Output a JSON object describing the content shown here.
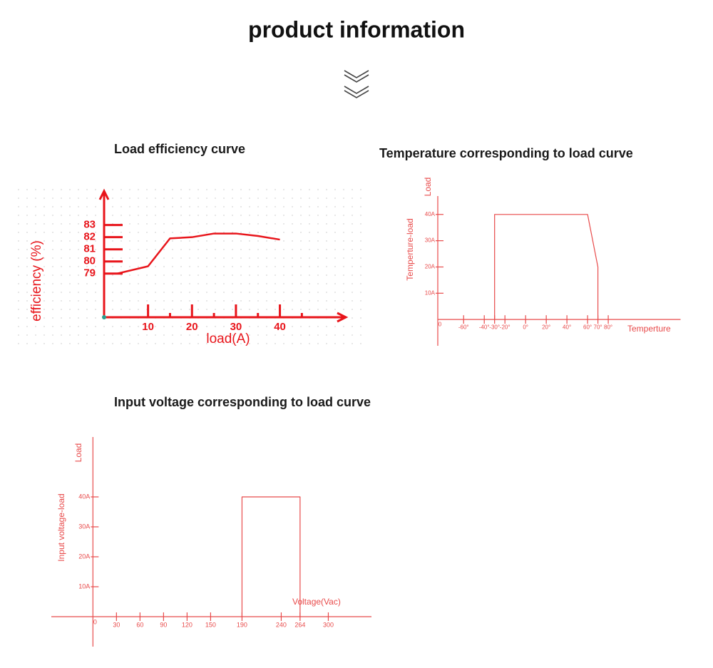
{
  "header": {
    "title": "product information"
  },
  "chart_data": [
    {
      "type": "line",
      "title": "Load efficiency curve",
      "x_label": "load(A)",
      "y_label": "efficiency (%)",
      "color": "#e8151b",
      "x": [
        3,
        10,
        15,
        20,
        25,
        30,
        35,
        40
      ],
      "values": [
        79,
        79.6,
        81.9,
        82,
        82.3,
        82.3,
        82.1,
        81.8
      ],
      "xlim": [
        0,
        55
      ],
      "ylim": [
        75.4,
        85.8
      ],
      "xticks": [
        10,
        20,
        30,
        40
      ],
      "xminor": [
        15,
        25,
        35,
        45
      ],
      "yticks": [
        79,
        80,
        81,
        82,
        83
      ]
    },
    {
      "type": "line",
      "title": "Temperature corresponding to load curve",
      "x_label": "Temperture",
      "y_label": "Temperture-load",
      "y_label_2": "Load",
      "color": "#e84a4a",
      "origin_label": "0",
      "x": [
        -30,
        -30,
        60,
        70,
        70
      ],
      "values": [
        0,
        40,
        40,
        20,
        0
      ],
      "xlim": [
        -85,
        150
      ],
      "ylim": [
        -10,
        47
      ],
      "xticks": [
        {
          "value": -60,
          "label": "-60°"
        },
        {
          "value": -40,
          "label": "-40°"
        },
        {
          "value": -30,
          "label": "-30°"
        },
        {
          "value": -20,
          "label": "-20°"
        },
        {
          "value": 0,
          "label": "0°"
        },
        {
          "value": 20,
          "label": "20°"
        },
        {
          "value": 40,
          "label": "40°"
        },
        {
          "value": 60,
          "label": "60°"
        },
        {
          "value": 70,
          "label": "70°"
        },
        {
          "value": 80,
          "label": "80°"
        }
      ],
      "yticks": [
        {
          "value": 10,
          "label": "10A"
        },
        {
          "value": 20,
          "label": "20A"
        },
        {
          "value": 30,
          "label": "30A"
        },
        {
          "value": 40,
          "label": "40A"
        }
      ]
    },
    {
      "type": "line",
      "title": "Input voltage corresponding to load curve",
      "x_label": "Voltage(Vac)",
      "y_label": "Input voltage-load",
      "y_label_2": "Load",
      "color": "#e84a4a",
      "origin_label": "0",
      "x": [
        190,
        190,
        264,
        264
      ],
      "values": [
        0,
        40,
        40,
        0
      ],
      "xlim": [
        -53,
        355
      ],
      "ylim": [
        -10,
        60
      ],
      "xticks": [
        30,
        60,
        90,
        120,
        150,
        190,
        240,
        264,
        300
      ],
      "yticks": [
        {
          "value": 10,
          "label": "10A"
        },
        {
          "value": 20,
          "label": "20A"
        },
        {
          "value": 30,
          "label": "30A"
        },
        {
          "value": 40,
          "label": "40A"
        }
      ]
    }
  ]
}
